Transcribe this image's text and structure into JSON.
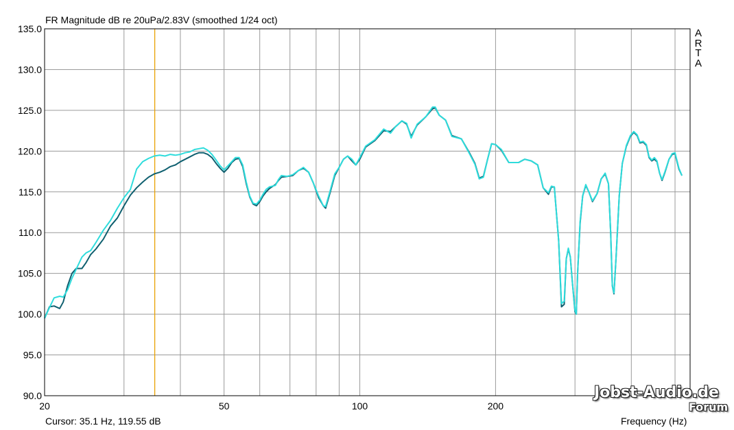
{
  "window": {
    "title": "FR Magnitude dB re 20uPa/2.83V (smoothed 1/24 oct)",
    "side_logo": [
      "A",
      "R",
      "T",
      "A"
    ],
    "cursor_readout": "Cursor: 35.1 Hz, 119.55 dB",
    "watermark_line1": "Jobst-Audio.de",
    "watermark_line2": "Forum"
  },
  "chart_data": {
    "type": "line",
    "title": "FR Magnitude dB re 20uPa/2.83V (smoothed 1/24 oct)",
    "xlabel": "Frequency (Hz)",
    "ylabel": "",
    "x_scale": "log",
    "xlim": [
      20,
      540
    ],
    "ylim": [
      90,
      135
    ],
    "x_tick_labels": [
      {
        "value": 20,
        "label": "20"
      },
      {
        "value": 50,
        "label": "50"
      },
      {
        "value": 100,
        "label": "100"
      },
      {
        "value": 200,
        "label": "200"
      }
    ],
    "x_gridlines": [
      20,
      30,
      40,
      50,
      60,
      70,
      80,
      90,
      100,
      200,
      300,
      400,
      500
    ],
    "y_ticks": [
      {
        "value": 90,
        "label": "90.0"
      },
      {
        "value": 95,
        "label": "95.0"
      },
      {
        "value": 100,
        "label": "100.0"
      },
      {
        "value": 105,
        "label": "105.0"
      },
      {
        "value": 110,
        "label": "110.0"
      },
      {
        "value": 115,
        "label": "115.0"
      },
      {
        "value": 120,
        "label": "120.0"
      },
      {
        "value": 125,
        "label": "125.0"
      },
      {
        "value": 130,
        "label": "130.0"
      },
      {
        "value": 135,
        "label": "135.0"
      }
    ],
    "grid": true,
    "cursor": {
      "x": 35.1,
      "y": 119.55,
      "color": "#e8a000"
    },
    "series": [
      {
        "color": "#0e5f6f",
        "points": [
          [
            20,
            99.5
          ],
          [
            20.5,
            100.9
          ],
          [
            21,
            101
          ],
          [
            21.6,
            100.7
          ],
          [
            22,
            101.5
          ],
          [
            22.5,
            103.5
          ],
          [
            23,
            105
          ],
          [
            23.5,
            105.6
          ],
          [
            24.2,
            105.6
          ],
          [
            24.7,
            106.3
          ],
          [
            25.3,
            107.3
          ],
          [
            26,
            108
          ],
          [
            27,
            109.2
          ],
          [
            28,
            110.8
          ],
          [
            29,
            111.8
          ],
          [
            30,
            113.3
          ],
          [
            31,
            114.6
          ],
          [
            32,
            115.5
          ],
          [
            33,
            116.2
          ],
          [
            34,
            116.8
          ],
          [
            35,
            117.2
          ],
          [
            36,
            117.4
          ],
          [
            37,
            117.7
          ],
          [
            38,
            118.1
          ],
          [
            39,
            118.3
          ],
          [
            40,
            118.7
          ],
          [
            41,
            119
          ],
          [
            42,
            119.3
          ],
          [
            43,
            119.6
          ],
          [
            44,
            119.8
          ],
          [
            45,
            119.8
          ],
          [
            46,
            119.6
          ],
          [
            47,
            119.2
          ],
          [
            48,
            118.5
          ],
          [
            49,
            117.9
          ],
          [
            50,
            117.4
          ],
          [
            51,
            117.9
          ],
          [
            52,
            118.6
          ],
          [
            53,
            119
          ],
          [
            54,
            119.1
          ],
          [
            55,
            118.1
          ],
          [
            56,
            116
          ],
          [
            57,
            114.4
          ],
          [
            58,
            113.5
          ],
          [
            59,
            113.3
          ],
          [
            60,
            113.8
          ],
          [
            61,
            114.5
          ],
          [
            62,
            115
          ],
          [
            63,
            115.4
          ],
          [
            65,
            115.9
          ],
          [
            66,
            116.4
          ],
          [
            67,
            116.8
          ],
          [
            69,
            116.9
          ],
          [
            71,
            117
          ],
          [
            73,
            117.6
          ],
          [
            75,
            117.9
          ],
          [
            77,
            117.4
          ],
          [
            79,
            116
          ],
          [
            81,
            114.3
          ],
          [
            83,
            113.3
          ],
          [
            84,
            113
          ],
          [
            86,
            115
          ],
          [
            88,
            117
          ],
          [
            90,
            118
          ],
          [
            92,
            119
          ],
          [
            94,
            119.4
          ],
          [
            96,
            118.8
          ],
          [
            98,
            118.3
          ],
          [
            100,
            119
          ],
          [
            103,
            120.5
          ],
          [
            108,
            121.3
          ],
          [
            113,
            122.5
          ],
          [
            117,
            122.4
          ],
          [
            120,
            123
          ],
          [
            124,
            123.7
          ],
          [
            127,
            123.3
          ],
          [
            130,
            121.8
          ],
          [
            134,
            123.2
          ],
          [
            140,
            124.2
          ],
          [
            145,
            125.2
          ],
          [
            147,
            125.3
          ],
          [
            150,
            124.4
          ],
          [
            155,
            123.8
          ],
          [
            160,
            121.9
          ],
          [
            168,
            121.5
          ],
          [
            175,
            119.8
          ],
          [
            180,
            118.5
          ],
          [
            184,
            116.7
          ],
          [
            188,
            116.9
          ],
          [
            192,
            119
          ],
          [
            196,
            120.9
          ],
          [
            200,
            120.8
          ],
          [
            206,
            120.1
          ],
          [
            214,
            118.6
          ],
          [
            225,
            118.6
          ],
          [
            232,
            119
          ],
          [
            240,
            118.8
          ],
          [
            248,
            118.3
          ],
          [
            255,
            115.5
          ],
          [
            262,
            114.7
          ],
          [
            266,
            115.6
          ],
          [
            270,
            115.6
          ],
          [
            276,
            109
          ],
          [
            280,
            100.9
          ],
          [
            284,
            101.2
          ],
          [
            287,
            106.8
          ],
          [
            290,
            108
          ],
          [
            293,
            107
          ],
          [
            296,
            104
          ],
          [
            300,
            100.3
          ],
          [
            302,
            100
          ],
          [
            304,
            105
          ],
          [
            308,
            111.2
          ],
          [
            312,
            114.5
          ],
          [
            317,
            115.8
          ],
          [
            322,
            115
          ],
          [
            328,
            113.8
          ],
          [
            336,
            114.8
          ],
          [
            343,
            116.6
          ],
          [
            350,
            117.2
          ],
          [
            356,
            116
          ],
          [
            360,
            110
          ],
          [
            363,
            103.5
          ],
          [
            366,
            102.5
          ],
          [
            370,
            107
          ],
          [
            376,
            114.5
          ],
          [
            382,
            118.5
          ],
          [
            390,
            120.6
          ],
          [
            398,
            121.8
          ],
          [
            405,
            122.3
          ],
          [
            412,
            121.9
          ],
          [
            418,
            121
          ],
          [
            425,
            121.1
          ],
          [
            432,
            120.7
          ],
          [
            438,
            119.2
          ],
          [
            444,
            118.8
          ],
          [
            450,
            119
          ],
          [
            456,
            118.7
          ],
          [
            462,
            117.3
          ],
          [
            468,
            116.4
          ],
          [
            475,
            117.4
          ],
          [
            485,
            119
          ],
          [
            493,
            119.6
          ],
          [
            500,
            119.7
          ],
          [
            510,
            117.8
          ],
          [
            518,
            117
          ]
        ]
      },
      {
        "color": "#2edcdc",
        "points": [
          [
            20,
            99.5
          ],
          [
            20.5,
            100.8
          ],
          [
            21,
            102
          ],
          [
            21.6,
            102.2
          ],
          [
            22,
            102.1
          ],
          [
            22.5,
            103
          ],
          [
            23,
            104.4
          ],
          [
            23.5,
            105.5
          ],
          [
            24.2,
            107
          ],
          [
            24.7,
            107.5
          ],
          [
            25.3,
            107.8
          ],
          [
            26,
            108.8
          ],
          [
            27,
            110.3
          ],
          [
            28,
            111.5
          ],
          [
            29,
            113
          ],
          [
            30,
            114.3
          ],
          [
            31,
            115.3
          ],
          [
            32,
            117.8
          ],
          [
            33,
            118.7
          ],
          [
            34,
            119.1
          ],
          [
            35,
            119.4
          ],
          [
            36,
            119.5
          ],
          [
            37,
            119.4
          ],
          [
            38,
            119.6
          ],
          [
            39,
            119.5
          ],
          [
            40,
            119.6
          ],
          [
            41,
            119.8
          ],
          [
            42,
            119.9
          ],
          [
            43,
            120.2
          ],
          [
            44,
            120.3
          ],
          [
            45,
            120.4
          ],
          [
            46,
            120.1
          ],
          [
            47,
            119.6
          ],
          [
            48,
            118.9
          ],
          [
            49,
            118.2
          ],
          [
            50,
            117.7
          ],
          [
            51,
            118.2
          ],
          [
            52,
            118.7
          ],
          [
            53,
            119.2
          ],
          [
            54,
            119.2
          ],
          [
            55,
            118.3
          ],
          [
            56,
            116.2
          ],
          [
            57,
            114.5
          ],
          [
            58,
            113.6
          ],
          [
            59,
            113.5
          ],
          [
            60,
            114
          ],
          [
            61,
            114.7
          ],
          [
            62,
            115.3
          ],
          [
            63,
            115.6
          ],
          [
            65,
            115.8
          ],
          [
            66,
            116.5
          ],
          [
            67,
            117
          ],
          [
            69,
            116.9
          ],
          [
            71,
            117.1
          ],
          [
            73,
            117.6
          ],
          [
            75,
            118
          ],
          [
            77,
            117.4
          ],
          [
            79,
            116
          ],
          [
            81,
            114.5
          ],
          [
            83,
            113.3
          ],
          [
            84,
            113.2
          ],
          [
            86,
            115.2
          ],
          [
            88,
            117.2
          ],
          [
            90,
            118
          ],
          [
            92,
            119
          ],
          [
            94,
            119.4
          ],
          [
            96,
            119
          ],
          [
            98,
            118.3
          ],
          [
            100,
            119.2
          ],
          [
            103,
            120.6
          ],
          [
            108,
            121.4
          ],
          [
            113,
            122.7
          ],
          [
            117,
            122.2
          ],
          [
            120,
            123
          ],
          [
            124,
            123.7
          ],
          [
            127,
            123.4
          ],
          [
            130,
            121.6
          ],
          [
            134,
            123.3
          ],
          [
            140,
            124.2
          ],
          [
            145,
            125.4
          ],
          [
            147,
            125.4
          ],
          [
            150,
            124.4
          ],
          [
            155,
            123.8
          ],
          [
            160,
            121.8
          ],
          [
            168,
            121.5
          ],
          [
            175,
            119.7
          ],
          [
            180,
            118.4
          ],
          [
            184,
            116.6
          ],
          [
            188,
            116.8
          ],
          [
            192,
            119
          ],
          [
            196,
            120.9
          ],
          [
            200,
            120.8
          ],
          [
            206,
            120.2
          ],
          [
            214,
            118.6
          ],
          [
            225,
            118.6
          ],
          [
            232,
            119
          ],
          [
            240,
            118.8
          ],
          [
            248,
            118.3
          ],
          [
            255,
            115.5
          ],
          [
            262,
            114.9
          ],
          [
            266,
            115.7
          ],
          [
            270,
            115.6
          ],
          [
            276,
            109
          ],
          [
            280,
            101.3
          ],
          [
            284,
            101.6
          ],
          [
            287,
            106.8
          ],
          [
            290,
            108.1
          ],
          [
            293,
            107
          ],
          [
            296,
            104
          ],
          [
            300,
            100.5
          ],
          [
            302,
            100
          ],
          [
            304,
            105
          ],
          [
            308,
            111.4
          ],
          [
            312,
            114.5
          ],
          [
            317,
            115.9
          ],
          [
            322,
            115
          ],
          [
            328,
            113.9
          ],
          [
            336,
            114.8
          ],
          [
            343,
            116.6
          ],
          [
            350,
            117.3
          ],
          [
            356,
            116
          ],
          [
            360,
            110
          ],
          [
            363,
            103.5
          ],
          [
            366,
            102.6
          ],
          [
            370,
            107
          ],
          [
            376,
            114.5
          ],
          [
            382,
            118.5
          ],
          [
            390,
            120.7
          ],
          [
            398,
            121.9
          ],
          [
            405,
            122.4
          ],
          [
            412,
            122
          ],
          [
            418,
            121.1
          ],
          [
            425,
            121.2
          ],
          [
            432,
            120.8
          ],
          [
            438,
            119.3
          ],
          [
            444,
            118.9
          ],
          [
            450,
            119.2
          ],
          [
            456,
            118.8
          ],
          [
            462,
            117.3
          ],
          [
            468,
            116.5
          ],
          [
            475,
            117.5
          ],
          [
            485,
            119
          ],
          [
            493,
            119.7
          ],
          [
            500,
            119.8
          ],
          [
            510,
            117.9
          ],
          [
            518,
            117
          ]
        ]
      }
    ]
  }
}
